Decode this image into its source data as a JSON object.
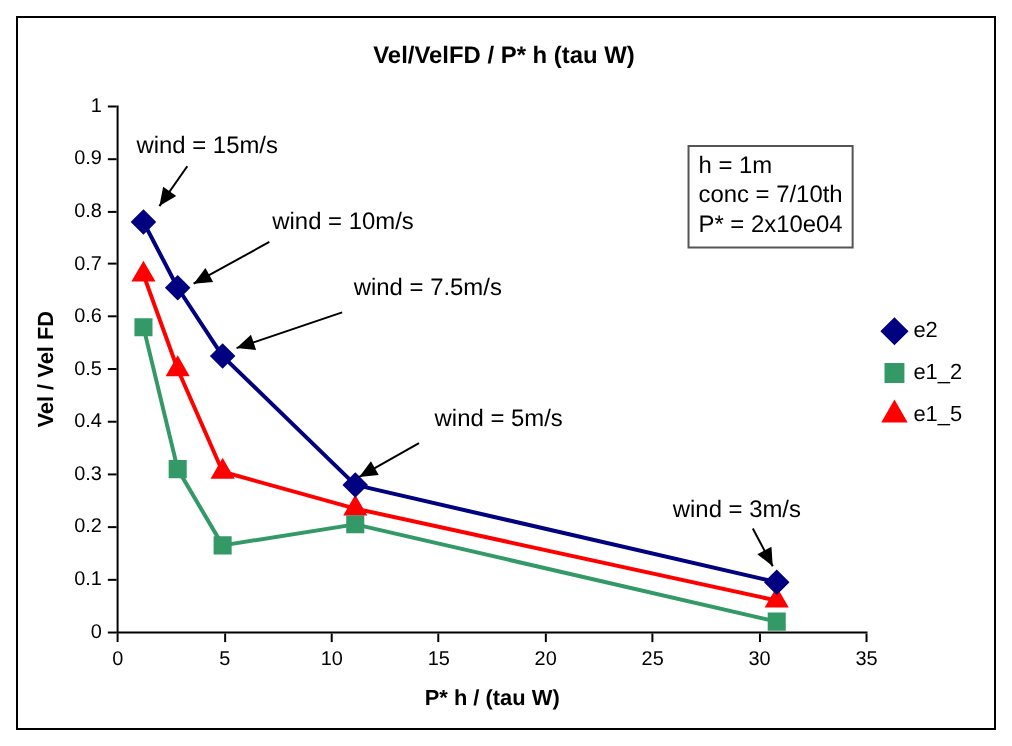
{
  "chart_data": {
    "type": "line",
    "title": "Vel/VelFD / P* h (tau W)",
    "xlabel": "P* h / (tau W)",
    "ylabel": "Vel / Vel FD",
    "x": [
      1.2,
      2.8,
      4.9,
      11.1,
      30.8
    ],
    "series": [
      {
        "name": "e2",
        "color": "#000080",
        "marker": "diamond",
        "values": [
          0.78,
          0.655,
          0.525,
          0.28,
          0.095
        ]
      },
      {
        "name": "e1_2",
        "color": "#339966",
        "marker": "square",
        "values": [
          0.58,
          0.31,
          0.165,
          0.205,
          0.02
        ]
      },
      {
        "name": "e1_5",
        "color": "#ff0000",
        "marker": "triangle",
        "values": [
          0.68,
          0.5,
          0.305,
          0.235,
          0.06
        ]
      }
    ],
    "annotations": [
      {
        "text": "wind = 15m/s",
        "x": 1.2,
        "y": 0.78
      },
      {
        "text": "wind = 10m/s",
        "x": 2.8,
        "y": 0.655
      },
      {
        "text": "wind = 7.5m/s",
        "x": 4.9,
        "y": 0.525
      },
      {
        "text": "wind = 5m/s",
        "x": 11.1,
        "y": 0.28
      },
      {
        "text": "wind = 3m/s",
        "x": 30.8,
        "y": 0.095
      },
      "h = 1m",
      "conc = 7/10th",
      "P* = 2x10e04"
    ],
    "xlim": [
      0,
      35
    ],
    "xticks": [
      0,
      5,
      10,
      15,
      20,
      25,
      30,
      35
    ],
    "ylim": [
      0,
      1
    ],
    "yticks": [
      0,
      0.1,
      0.2,
      0.3,
      0.4,
      0.5,
      0.6,
      0.7,
      0.8,
      0.9,
      1
    ],
    "grid": false,
    "legend": "right",
    "line_style": "solid"
  }
}
